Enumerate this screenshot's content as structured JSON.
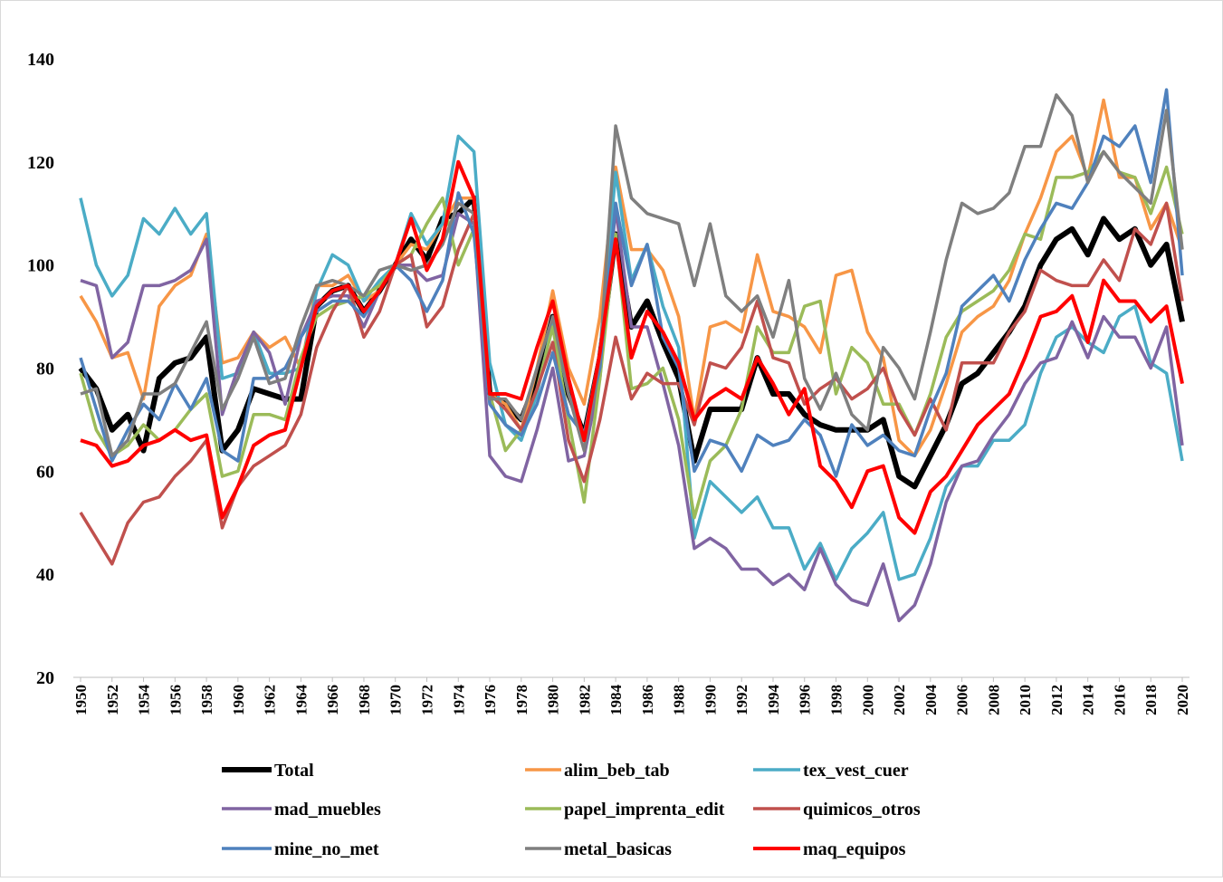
{
  "chart_data": {
    "type": "line",
    "x": [
      1950,
      1951,
      1952,
      1953,
      1954,
      1955,
      1956,
      1957,
      1958,
      1959,
      1960,
      1961,
      1962,
      1963,
      1964,
      1965,
      1966,
      1967,
      1968,
      1969,
      1970,
      1971,
      1972,
      1973,
      1974,
      1975,
      1976,
      1977,
      1978,
      1979,
      1980,
      1981,
      1982,
      1983,
      1984,
      1985,
      1986,
      1987,
      1988,
      1989,
      1990,
      1991,
      1992,
      1993,
      1994,
      1995,
      1996,
      1997,
      1998,
      1999,
      2000,
      2001,
      2002,
      2003,
      2004,
      2005,
      2006,
      2007,
      2008,
      2009,
      2010,
      2011,
      2012,
      2013,
      2014,
      2015,
      2016,
      2017,
      2018,
      2019,
      2020
    ],
    "xlim": [
      1950,
      2020
    ],
    "xticks": [
      1950,
      1952,
      1954,
      1956,
      1958,
      1960,
      1962,
      1964,
      1966,
      1968,
      1970,
      1972,
      1974,
      1976,
      1978,
      1980,
      1982,
      1984,
      1986,
      1988,
      1990,
      1992,
      1994,
      1996,
      1998,
      2000,
      2002,
      2004,
      2006,
      2008,
      2010,
      2012,
      2014,
      2016,
      2018,
      2020
    ],
    "ylim": [
      20,
      140
    ],
    "yticks": [
      20,
      40,
      60,
      80,
      100,
      120,
      140
    ],
    "grid": false,
    "legend": "bottom",
    "series": [
      {
        "name": "Total",
        "color": "#000000",
        "line_width": 6,
        "values": [
          80,
          76,
          68,
          71,
          64,
          78,
          81,
          82,
          86,
          64,
          68,
          76,
          75,
          74,
          74,
          92,
          95,
          96,
          91,
          95,
          100,
          105,
          101,
          109,
          110,
          113,
          75,
          73,
          70,
          78,
          90,
          75,
          67,
          82,
          106,
          88,
          93,
          85,
          78,
          62,
          72,
          72,
          72,
          82,
          75,
          75,
          71,
          69,
          68,
          68,
          68,
          70,
          59,
          57,
          63,
          69,
          77,
          79,
          83,
          87,
          92,
          100,
          105,
          107,
          102,
          109,
          105,
          107,
          100,
          104,
          89
        ]
      },
      {
        "name": "alim_beb_tab",
        "color": "#f79646",
        "line_width": 3.5,
        "values": [
          94,
          89,
          82,
          83,
          74,
          92,
          96,
          98,
          106,
          81,
          82,
          87,
          84,
          86,
          80,
          96,
          96,
          98,
          93,
          95,
          100,
          104,
          103,
          108,
          113,
          113,
          75,
          73,
          68,
          80,
          95,
          80,
          73,
          90,
          119,
          103,
          103,
          99,
          90,
          70,
          88,
          89,
          87,
          102,
          91,
          90,
          88,
          83,
          98,
          99,
          87,
          82,
          66,
          63,
          68,
          77,
          87,
          90,
          92,
          97,
          106,
          113,
          122,
          125,
          117,
          132,
          117,
          117,
          107,
          112,
          103
        ]
      },
      {
        "name": "tex_vest_cuer",
        "color": "#4bacc6",
        "line_width": 3.5,
        "values": [
          113,
          100,
          94,
          98,
          109,
          106,
          111,
          106,
          110,
          78,
          79,
          87,
          79,
          79,
          80,
          95,
          102,
          100,
          93,
          97,
          100,
          110,
          104,
          108,
          125,
          122,
          81,
          69,
          66,
          75,
          89,
          75,
          67,
          83,
          118,
          97,
          104,
          92,
          84,
          47,
          58,
          55,
          52,
          55,
          49,
          49,
          41,
          46,
          39,
          45,
          48,
          52,
          39,
          40,
          47,
          57,
          61,
          61,
          66,
          66,
          69,
          79,
          86,
          88,
          85,
          83,
          90,
          92,
          81,
          79,
          62
        ]
      },
      {
        "name": "mad_muebles",
        "color": "#8064a2",
        "line_width": 3.5,
        "values": [
          97,
          96,
          82,
          85,
          96,
          96,
          97,
          99,
          105,
          71,
          80,
          87,
          83,
          73,
          86,
          93,
          94,
          94,
          88,
          95,
          100,
          100,
          97,
          98,
          110,
          108,
          63,
          59,
          58,
          68,
          80,
          62,
          63,
          78,
          111,
          88,
          88,
          77,
          65,
          45,
          47,
          45,
          41,
          41,
          38,
          40,
          37,
          45,
          38,
          35,
          34,
          42,
          31,
          34,
          42,
          54,
          61,
          62,
          67,
          71,
          77,
          81,
          82,
          89,
          82,
          90,
          86,
          86,
          80,
          88,
          65
        ]
      },
      {
        "name": "papel_imprenta_edit",
        "color": "#9bbb59",
        "line_width": 3.5,
        "values": [
          79,
          68,
          63,
          65,
          69,
          66,
          68,
          72,
          75,
          59,
          60,
          71,
          71,
          70,
          82,
          90,
          92,
          93,
          94,
          96,
          100,
          102,
          108,
          113,
          100,
          107,
          75,
          64,
          68,
          76,
          88,
          70,
          54,
          78,
          106,
          76,
          77,
          80,
          70,
          51,
          62,
          65,
          72,
          88,
          83,
          83,
          92,
          93,
          75,
          84,
          81,
          73,
          73,
          67,
          75,
          86,
          91,
          93,
          95,
          99,
          106,
          105,
          117,
          117,
          118,
          122,
          118,
          117,
          110,
          119,
          106
        ]
      },
      {
        "name": "quimicos_otros",
        "color": "#c0504d",
        "line_width": 3.5,
        "values": [
          52,
          47,
          42,
          50,
          54,
          55,
          59,
          62,
          66,
          49,
          57,
          61,
          63,
          65,
          71,
          84,
          91,
          96,
          86,
          91,
          100,
          102,
          88,
          92,
          103,
          110,
          75,
          72,
          68,
          76,
          85,
          66,
          58,
          70,
          86,
          74,
          79,
          77,
          77,
          69,
          81,
          80,
          84,
          93,
          82,
          81,
          73,
          76,
          78,
          74,
          76,
          80,
          72,
          67,
          74,
          68,
          81,
          81,
          81,
          87,
          91,
          99,
          97,
          96,
          96,
          101,
          97,
          107,
          104,
          112,
          93
        ]
      },
      {
        "name": "mine_no_met",
        "color": "#4f81bd",
        "line_width": 3.5,
        "values": [
          82,
          72,
          62,
          68,
          73,
          70,
          77,
          72,
          78,
          64,
          62,
          78,
          78,
          80,
          86,
          91,
          93,
          93,
          90,
          95,
          100,
          97,
          91,
          97,
          114,
          106,
          73,
          69,
          67,
          73,
          83,
          71,
          67,
          80,
          112,
          96,
          104,
          86,
          80,
          60,
          66,
          65,
          60,
          67,
          65,
          66,
          70,
          67,
          59,
          69,
          65,
          67,
          64,
          63,
          72,
          79,
          92,
          95,
          98,
          93,
          101,
          107,
          112,
          111,
          116,
          125,
          123,
          127,
          116,
          134,
          98
        ]
      },
      {
        "name": "metal_basicas",
        "color": "#7f7f7f",
        "line_width": 3.5,
        "values": [
          75,
          76,
          63,
          66,
          75,
          75,
          77,
          83,
          89,
          72,
          78,
          86,
          77,
          78,
          88,
          96,
          97,
          96,
          94,
          99,
          100,
          99,
          100,
          104,
          112,
          110,
          74,
          74,
          70,
          80,
          90,
          75,
          64,
          82,
          127,
          113,
          110,
          109,
          108,
          96,
          108,
          94,
          91,
          94,
          86,
          97,
          78,
          72,
          79,
          71,
          68,
          84,
          80,
          74,
          87,
          101,
          112,
          110,
          111,
          114,
          123,
          123,
          133,
          129,
          116,
          122,
          118,
          115,
          112,
          130,
          103
        ]
      },
      {
        "name": "maq_equipos",
        "color": "#ff0000",
        "line_width": 4,
        "values": [
          66,
          65,
          61,
          62,
          65,
          66,
          68,
          66,
          67,
          51,
          57,
          65,
          67,
          68,
          80,
          92,
          95,
          96,
          91,
          95,
          100,
          109,
          99,
          105,
          120,
          113,
          75,
          75,
          74,
          84,
          93,
          78,
          66,
          83,
          105,
          82,
          91,
          87,
          81,
          70,
          74,
          76,
          74,
          82,
          77,
          71,
          76,
          61,
          58,
          53,
          60,
          61,
          51,
          48,
          56,
          59,
          64,
          69,
          72,
          75,
          82,
          90,
          91,
          94,
          85,
          97,
          93,
          93,
          89,
          92,
          77
        ]
      }
    ]
  }
}
